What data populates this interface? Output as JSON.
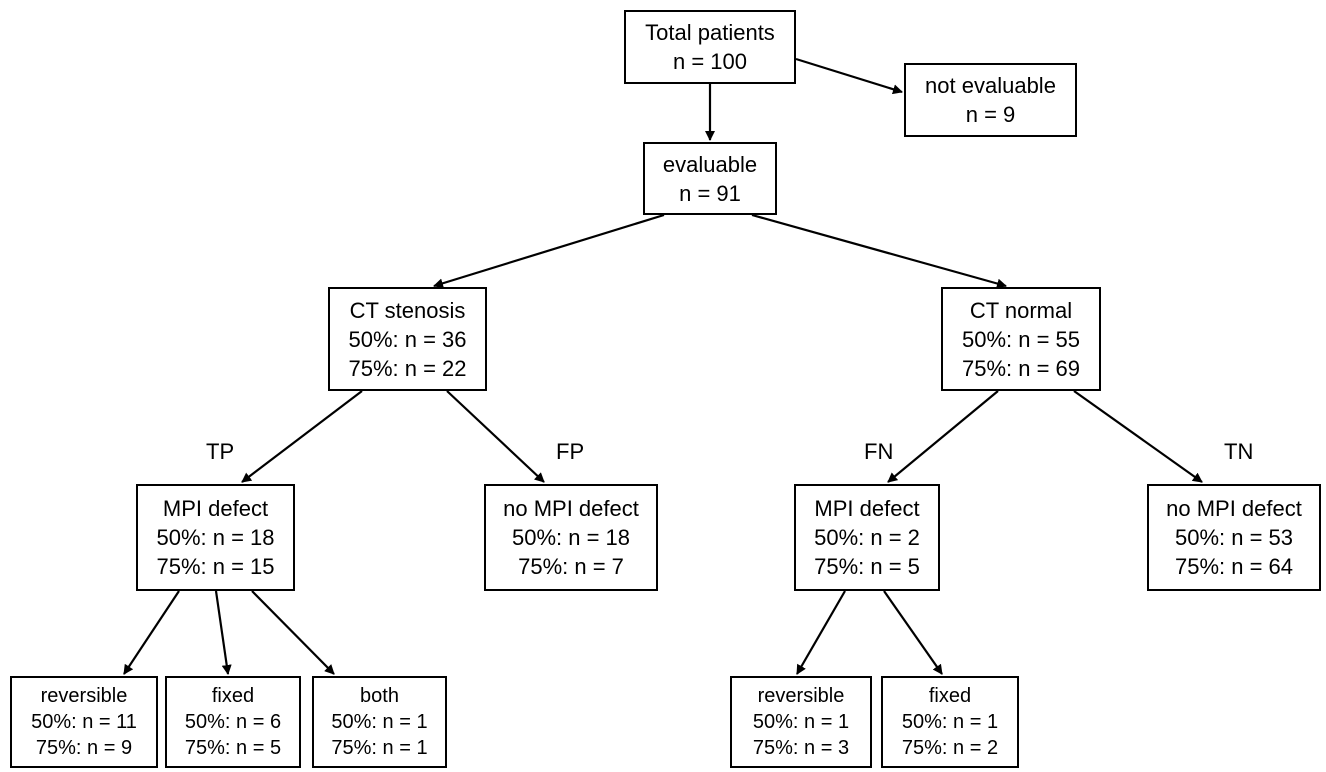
{
  "nodes": {
    "total": {
      "line1": "Total patients",
      "line2": "n = 100"
    },
    "not_evaluable": {
      "line1": "not evaluable",
      "line2": "n = 9"
    },
    "evaluable": {
      "line1": "evaluable",
      "line2": "n = 91"
    },
    "ct_stenosis": {
      "line1": "CT stenosis",
      "line2": "50%: n = 36",
      "line3": "75%: n = 22"
    },
    "ct_normal": {
      "line1": "CT normal",
      "line2": "50%: n = 55",
      "line3": "75%: n = 69"
    },
    "tp_mpi_defect": {
      "line1": "MPI defect",
      "line2": "50%: n = 18",
      "line3": "75%: n = 15"
    },
    "fp_no_mpi_defect": {
      "line1": "no MPI defect",
      "line2": "50%: n = 18",
      "line3": "75%: n = 7"
    },
    "fn_mpi_defect": {
      "line1": "MPI defect",
      "line2": "50%: n = 2",
      "line3": "75%: n = 5"
    },
    "tn_no_mpi_defect": {
      "line1": "no MPI defect",
      "line2": "50%: n = 53",
      "line3": "75%: n = 64"
    },
    "tp_reversible": {
      "line1": "reversible",
      "line2": "50%: n = 11",
      "line3": "75%: n = 9"
    },
    "tp_fixed": {
      "line1": "fixed",
      "line2": "50%: n = 6",
      "line3": "75%: n = 5"
    },
    "tp_both": {
      "line1": "both",
      "line2": "50%: n = 1",
      "line3": "75%: n = 1"
    },
    "fn_reversible": {
      "line1": "reversible",
      "line2": "50%: n = 1",
      "line3": "75%: n = 3"
    },
    "fn_fixed": {
      "line1": "fixed",
      "line2": "50%: n = 1",
      "line3": "75%: n = 2"
    }
  },
  "edge_labels": {
    "tp": "TP",
    "fp": "FP",
    "fn": "FN",
    "tn": "TN"
  }
}
